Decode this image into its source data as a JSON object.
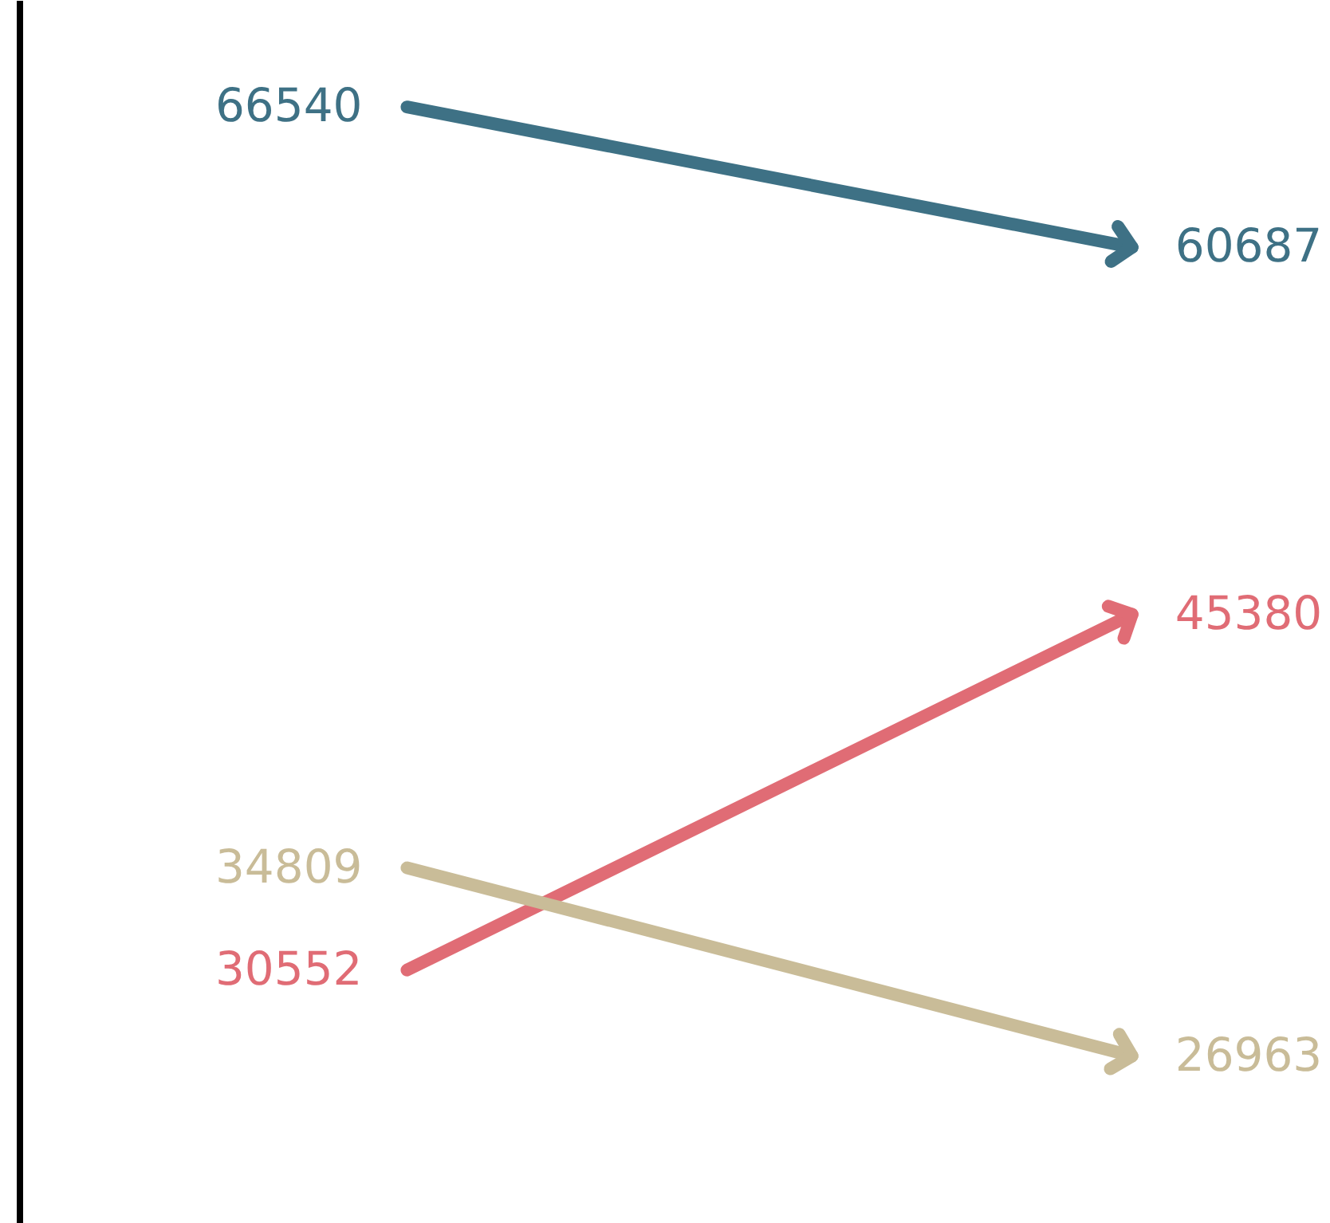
{
  "chart_data": {
    "type": "line",
    "categories": [
      null,
      null
    ],
    "ylim": [
      20000,
      71000
    ],
    "data_labels": true,
    "grid": false,
    "series": [
      {
        "color": "#3e7185",
        "values": [
          66540,
          60687
        ]
      },
      {
        "color": "#e06c75",
        "values": [
          30552,
          45380
        ]
      },
      {
        "color": "#c9bc98",
        "values": [
          34809,
          26963
        ]
      }
    ]
  }
}
